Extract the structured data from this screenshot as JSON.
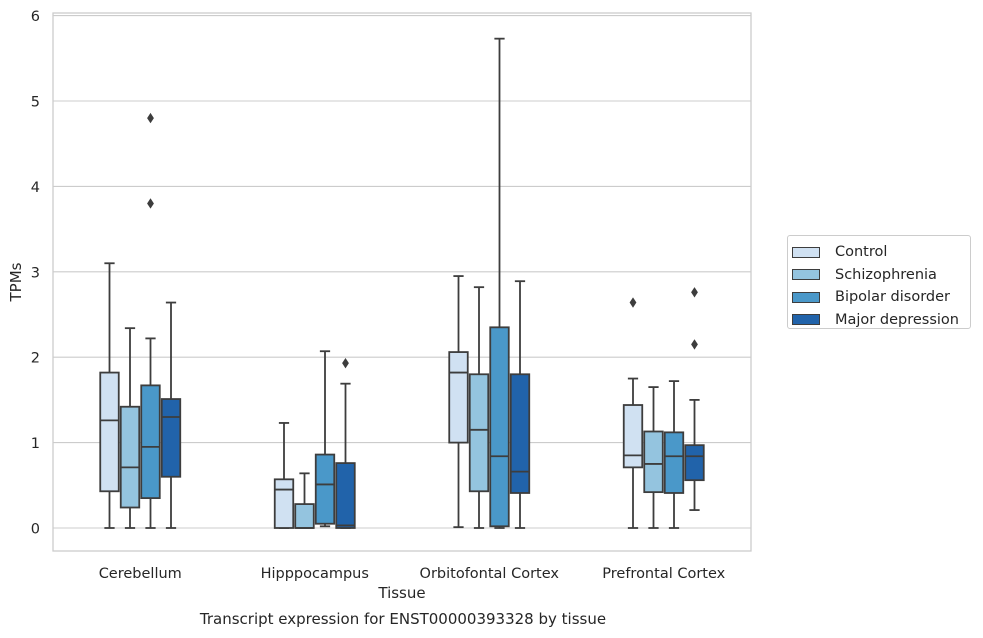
{
  "chart_data": {
    "type": "box",
    "title": "",
    "xlabel": "Tissue",
    "ylabel": "TPMs",
    "ylim": [
      -0.27,
      6.02
    ],
    "yticks": [
      0,
      1,
      2,
      3,
      4,
      5,
      6
    ],
    "grid": "horizontal",
    "legend_position": "right",
    "categories": [
      "Cerebellum",
      "Hipppocampus",
      "Orbitofontal Cortex",
      "Prefrontal Cortex"
    ],
    "series": [
      {
        "name": "Control",
        "color": "#d0e1f2",
        "boxes": [
          {
            "whislo": 0.0,
            "q1": 0.43,
            "med": 1.26,
            "q3": 1.82,
            "whishi": 3.1,
            "fliers": []
          },
          {
            "whislo": 0.0,
            "q1": 0.0,
            "med": 0.45,
            "q3": 0.57,
            "whishi": 1.23,
            "fliers": []
          },
          {
            "whislo": 0.01,
            "q1": 1.0,
            "med": 1.82,
            "q3": 2.06,
            "whishi": 2.95,
            "fliers": []
          },
          {
            "whislo": 0.0,
            "q1": 0.71,
            "med": 0.85,
            "q3": 1.44,
            "whishi": 1.75,
            "fliers": [
              2.64
            ]
          }
        ]
      },
      {
        "name": "Schizophrenia",
        "color": "#94c4df",
        "boxes": [
          {
            "whislo": 0.0,
            "q1": 0.24,
            "med": 0.71,
            "q3": 1.42,
            "whishi": 2.34,
            "fliers": []
          },
          {
            "whislo": 0.0,
            "q1": 0.0,
            "med": 0.0,
            "q3": 0.28,
            "whishi": 0.64,
            "fliers": []
          },
          {
            "whislo": 0.0,
            "q1": 0.43,
            "med": 1.15,
            "q3": 1.8,
            "whishi": 2.82,
            "fliers": []
          },
          {
            "whislo": 0.0,
            "q1": 0.42,
            "med": 0.75,
            "q3": 1.13,
            "whishi": 1.65,
            "fliers": []
          }
        ]
      },
      {
        "name": "Bipolar disorder",
        "color": "#4a98c9",
        "boxes": [
          {
            "whislo": 0.0,
            "q1": 0.35,
            "med": 0.95,
            "q3": 1.67,
            "whishi": 2.22,
            "fliers": [
              3.8,
              4.8
            ]
          },
          {
            "whislo": 0.02,
            "q1": 0.05,
            "med": 0.51,
            "q3": 0.86,
            "whishi": 2.07,
            "fliers": []
          },
          {
            "whislo": 0.0,
            "q1": 0.02,
            "med": 0.84,
            "q3": 2.35,
            "whishi": 5.73,
            "fliers": []
          },
          {
            "whislo": 0.0,
            "q1": 0.41,
            "med": 0.84,
            "q3": 1.12,
            "whishi": 1.72,
            "fliers": []
          }
        ]
      },
      {
        "name": "Major depression",
        "color": "#2163aa",
        "boxes": [
          {
            "whislo": 0.0,
            "q1": 0.6,
            "med": 1.3,
            "q3": 1.51,
            "whishi": 2.64,
            "fliers": []
          },
          {
            "whislo": 0.0,
            "q1": 0.0,
            "med": 0.03,
            "q3": 0.76,
            "whishi": 1.69,
            "fliers": [
              1.93
            ]
          },
          {
            "whislo": 0.0,
            "q1": 0.41,
            "med": 0.66,
            "q3": 1.8,
            "whishi": 2.89,
            "fliers": []
          },
          {
            "whislo": 0.21,
            "q1": 0.56,
            "med": 0.84,
            "q3": 0.97,
            "whishi": 1.5,
            "fliers": [
              2.15,
              2.76
            ]
          }
        ]
      }
    ]
  },
  "caption": "Transcript expression for ENST00000393328 by tissue"
}
